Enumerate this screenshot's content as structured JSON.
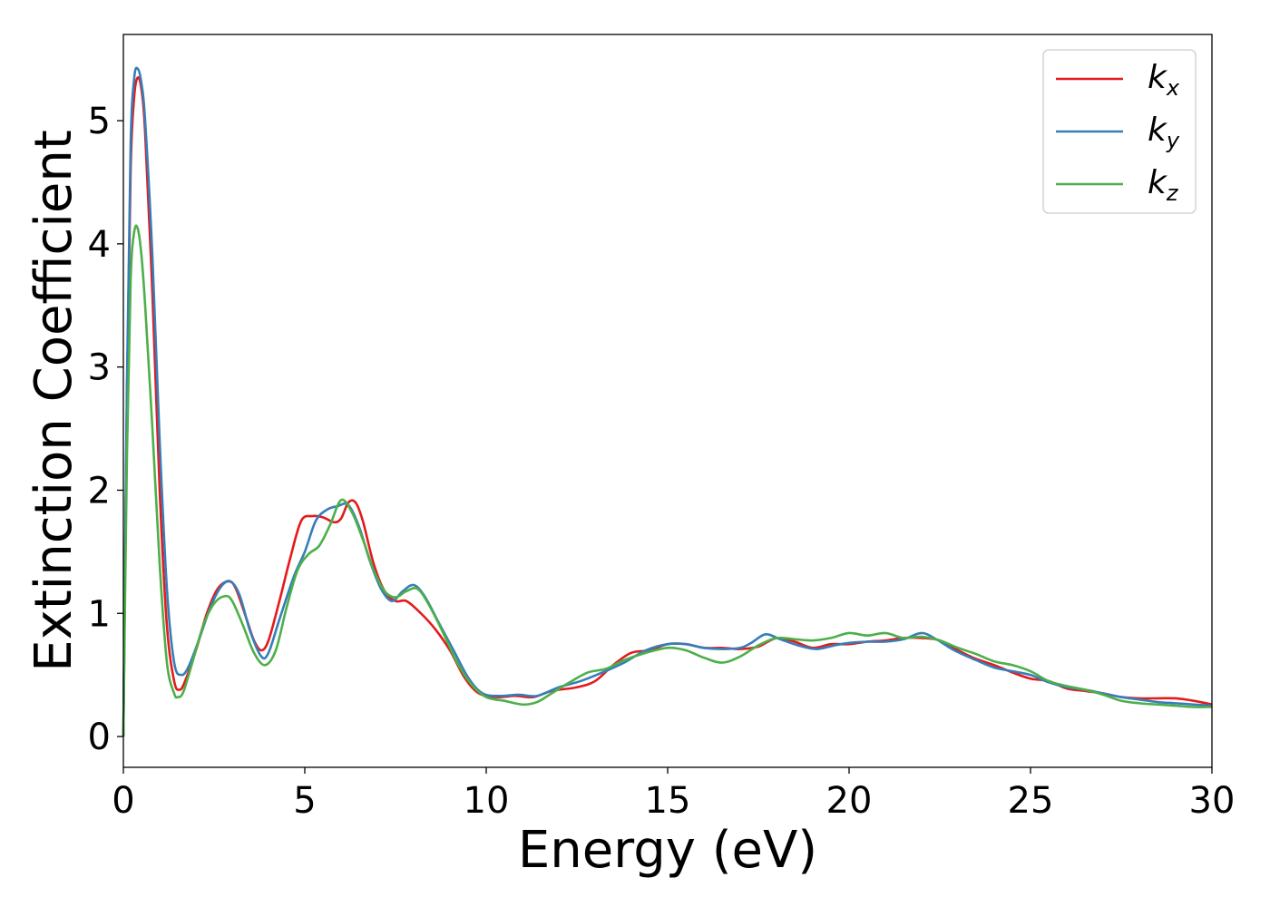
{
  "chart_data": {
    "type": "line",
    "xlabel": "Energy (eV)",
    "ylabel": "Extinction Coefficient",
    "xlim": [
      0,
      30
    ],
    "ylim": [
      -0.25,
      5.7
    ],
    "xticks": [
      0,
      5,
      10,
      15,
      20,
      25,
      30
    ],
    "yticks": [
      0,
      1,
      2,
      3,
      4,
      5
    ],
    "grid": false,
    "legend_position": "top-right",
    "series": [
      {
        "name": "k_x",
        "label_base": "k",
        "label_sub": "x",
        "color": "#e41a1c",
        "points": [
          [
            0,
            0
          ],
          [
            0.1,
            2.8
          ],
          [
            0.2,
            4.6
          ],
          [
            0.3,
            5.2
          ],
          [
            0.4,
            5.35
          ],
          [
            0.5,
            5.25
          ],
          [
            0.6,
            4.9
          ],
          [
            0.8,
            3.6
          ],
          [
            1.0,
            2.0
          ],
          [
            1.2,
            0.9
          ],
          [
            1.4,
            0.45
          ],
          [
            1.55,
            0.38
          ],
          [
            1.7,
            0.45
          ],
          [
            2.0,
            0.7
          ],
          [
            2.3,
            1.0
          ],
          [
            2.6,
            1.2
          ],
          [
            2.9,
            1.26
          ],
          [
            3.1,
            1.2
          ],
          [
            3.4,
            0.95
          ],
          [
            3.6,
            0.78
          ],
          [
            3.8,
            0.7
          ],
          [
            4.0,
            0.78
          ],
          [
            4.3,
            1.1
          ],
          [
            4.6,
            1.45
          ],
          [
            4.9,
            1.75
          ],
          [
            5.2,
            1.79
          ],
          [
            5.5,
            1.78
          ],
          [
            5.8,
            1.74
          ],
          [
            6.0,
            1.77
          ],
          [
            6.2,
            1.9
          ],
          [
            6.4,
            1.9
          ],
          [
            6.6,
            1.75
          ],
          [
            6.9,
            1.4
          ],
          [
            7.2,
            1.18
          ],
          [
            7.5,
            1.1
          ],
          [
            7.8,
            1.1
          ],
          [
            8.2,
            1.0
          ],
          [
            8.6,
            0.87
          ],
          [
            9.0,
            0.7
          ],
          [
            9.4,
            0.48
          ],
          [
            9.8,
            0.35
          ],
          [
            10.3,
            0.32
          ],
          [
            10.8,
            0.33
          ],
          [
            11.3,
            0.32
          ],
          [
            11.8,
            0.37
          ],
          [
            12.5,
            0.4
          ],
          [
            13.0,
            0.45
          ],
          [
            13.5,
            0.58
          ],
          [
            14.0,
            0.68
          ],
          [
            14.5,
            0.7
          ],
          [
            15.0,
            0.75
          ],
          [
            15.5,
            0.75
          ],
          [
            16.0,
            0.72
          ],
          [
            16.5,
            0.72
          ],
          [
            17.0,
            0.71
          ],
          [
            17.5,
            0.73
          ],
          [
            18.0,
            0.8
          ],
          [
            18.5,
            0.77
          ],
          [
            19.0,
            0.72
          ],
          [
            19.5,
            0.75
          ],
          [
            20.0,
            0.75
          ],
          [
            20.5,
            0.77
          ],
          [
            21.0,
            0.78
          ],
          [
            21.5,
            0.8
          ],
          [
            22.0,
            0.8
          ],
          [
            22.5,
            0.78
          ],
          [
            23.0,
            0.7
          ],
          [
            23.5,
            0.63
          ],
          [
            24.0,
            0.58
          ],
          [
            24.5,
            0.52
          ],
          [
            25.0,
            0.47
          ],
          [
            25.5,
            0.45
          ],
          [
            26.0,
            0.39
          ],
          [
            26.5,
            0.37
          ],
          [
            27.0,
            0.35
          ],
          [
            27.5,
            0.32
          ],
          [
            28.0,
            0.31
          ],
          [
            28.5,
            0.31
          ],
          [
            29.0,
            0.31
          ],
          [
            29.5,
            0.29
          ],
          [
            30.0,
            0.26
          ]
        ]
      },
      {
        "name": "k_y",
        "label_base": "k",
        "label_sub": "y",
        "color": "#377eb8",
        "points": [
          [
            0,
            0
          ],
          [
            0.1,
            2.9
          ],
          [
            0.2,
            4.8
          ],
          [
            0.3,
            5.35
          ],
          [
            0.4,
            5.42
          ],
          [
            0.5,
            5.3
          ],
          [
            0.6,
            5.0
          ],
          [
            0.8,
            3.9
          ],
          [
            1.0,
            2.4
          ],
          [
            1.2,
            1.2
          ],
          [
            1.4,
            0.6
          ],
          [
            1.6,
            0.5
          ],
          [
            1.8,
            0.57
          ],
          [
            2.1,
            0.8
          ],
          [
            2.4,
            1.05
          ],
          [
            2.7,
            1.22
          ],
          [
            2.95,
            1.26
          ],
          [
            3.2,
            1.15
          ],
          [
            3.5,
            0.85
          ],
          [
            3.8,
            0.65
          ],
          [
            4.0,
            0.68
          ],
          [
            4.3,
            0.95
          ],
          [
            4.7,
            1.3
          ],
          [
            5.0,
            1.5
          ],
          [
            5.3,
            1.75
          ],
          [
            5.6,
            1.84
          ],
          [
            5.9,
            1.87
          ],
          [
            6.2,
            1.88
          ],
          [
            6.5,
            1.7
          ],
          [
            6.8,
            1.42
          ],
          [
            7.1,
            1.2
          ],
          [
            7.4,
            1.1
          ],
          [
            7.7,
            1.18
          ],
          [
            8.0,
            1.23
          ],
          [
            8.3,
            1.14
          ],
          [
            8.7,
            0.92
          ],
          [
            9.1,
            0.7
          ],
          [
            9.5,
            0.48
          ],
          [
            9.9,
            0.35
          ],
          [
            10.4,
            0.33
          ],
          [
            10.9,
            0.34
          ],
          [
            11.4,
            0.33
          ],
          [
            12.0,
            0.4
          ],
          [
            12.6,
            0.45
          ],
          [
            13.2,
            0.52
          ],
          [
            13.8,
            0.6
          ],
          [
            14.4,
            0.7
          ],
          [
            15.0,
            0.75
          ],
          [
            15.5,
            0.75
          ],
          [
            16.0,
            0.72
          ],
          [
            16.5,
            0.71
          ],
          [
            17.0,
            0.72
          ],
          [
            17.3,
            0.76
          ],
          [
            17.7,
            0.83
          ],
          [
            18.1,
            0.79
          ],
          [
            18.6,
            0.74
          ],
          [
            19.1,
            0.71
          ],
          [
            19.6,
            0.74
          ],
          [
            20.0,
            0.76
          ],
          [
            20.5,
            0.77
          ],
          [
            21.0,
            0.77
          ],
          [
            21.5,
            0.79
          ],
          [
            22.0,
            0.84
          ],
          [
            22.4,
            0.79
          ],
          [
            22.9,
            0.7
          ],
          [
            23.5,
            0.62
          ],
          [
            24.0,
            0.56
          ],
          [
            24.5,
            0.53
          ],
          [
            25.0,
            0.5
          ],
          [
            25.5,
            0.44
          ],
          [
            26.0,
            0.4
          ],
          [
            26.5,
            0.38
          ],
          [
            27.0,
            0.35
          ],
          [
            27.5,
            0.32
          ],
          [
            28.0,
            0.3
          ],
          [
            28.5,
            0.28
          ],
          [
            29.0,
            0.27
          ],
          [
            29.5,
            0.26
          ],
          [
            30.0,
            0.25
          ]
        ]
      },
      {
        "name": "k_z",
        "label_base": "k",
        "label_sub": "z",
        "color": "#4daf4a",
        "points": [
          [
            0,
            0
          ],
          [
            0.1,
            2.3
          ],
          [
            0.2,
            3.7
          ],
          [
            0.3,
            4.1
          ],
          [
            0.4,
            4.12
          ],
          [
            0.5,
            3.9
          ],
          [
            0.6,
            3.5
          ],
          [
            0.8,
            2.5
          ],
          [
            1.0,
            1.4
          ],
          [
            1.2,
            0.6
          ],
          [
            1.4,
            0.35
          ],
          [
            1.5,
            0.32
          ],
          [
            1.65,
            0.36
          ],
          [
            1.9,
            0.6
          ],
          [
            2.2,
            0.9
          ],
          [
            2.5,
            1.08
          ],
          [
            2.8,
            1.14
          ],
          [
            3.0,
            1.1
          ],
          [
            3.3,
            0.9
          ],
          [
            3.6,
            0.68
          ],
          [
            3.9,
            0.58
          ],
          [
            4.2,
            0.7
          ],
          [
            4.5,
            1.05
          ],
          [
            4.8,
            1.35
          ],
          [
            5.1,
            1.48
          ],
          [
            5.4,
            1.55
          ],
          [
            5.7,
            1.72
          ],
          [
            6.0,
            1.92
          ],
          [
            6.3,
            1.82
          ],
          [
            6.6,
            1.6
          ],
          [
            6.9,
            1.35
          ],
          [
            7.2,
            1.18
          ],
          [
            7.5,
            1.13
          ],
          [
            7.8,
            1.18
          ],
          [
            8.1,
            1.2
          ],
          [
            8.4,
            1.08
          ],
          [
            8.8,
            0.85
          ],
          [
            9.2,
            0.6
          ],
          [
            9.6,
            0.42
          ],
          [
            10.0,
            0.32
          ],
          [
            10.5,
            0.29
          ],
          [
            11.0,
            0.26
          ],
          [
            11.4,
            0.28
          ],
          [
            11.8,
            0.35
          ],
          [
            12.3,
            0.44
          ],
          [
            12.8,
            0.52
          ],
          [
            13.3,
            0.55
          ],
          [
            13.8,
            0.62
          ],
          [
            14.4,
            0.68
          ],
          [
            15.0,
            0.72
          ],
          [
            15.5,
            0.7
          ],
          [
            16.0,
            0.64
          ],
          [
            16.5,
            0.6
          ],
          [
            17.0,
            0.65
          ],
          [
            17.5,
            0.74
          ],
          [
            18.0,
            0.8
          ],
          [
            18.5,
            0.79
          ],
          [
            19.0,
            0.78
          ],
          [
            19.5,
            0.8
          ],
          [
            20.0,
            0.84
          ],
          [
            20.5,
            0.82
          ],
          [
            21.0,
            0.84
          ],
          [
            21.5,
            0.8
          ],
          [
            22.0,
            0.81
          ],
          [
            22.5,
            0.78
          ],
          [
            23.0,
            0.72
          ],
          [
            23.5,
            0.67
          ],
          [
            24.0,
            0.61
          ],
          [
            24.5,
            0.58
          ],
          [
            25.0,
            0.53
          ],
          [
            25.5,
            0.45
          ],
          [
            26.0,
            0.41
          ],
          [
            26.5,
            0.38
          ],
          [
            27.0,
            0.34
          ],
          [
            27.5,
            0.29
          ],
          [
            28.0,
            0.27
          ],
          [
            28.5,
            0.26
          ],
          [
            29.0,
            0.25
          ],
          [
            29.5,
            0.24
          ],
          [
            30.0,
            0.24
          ]
        ]
      }
    ]
  }
}
